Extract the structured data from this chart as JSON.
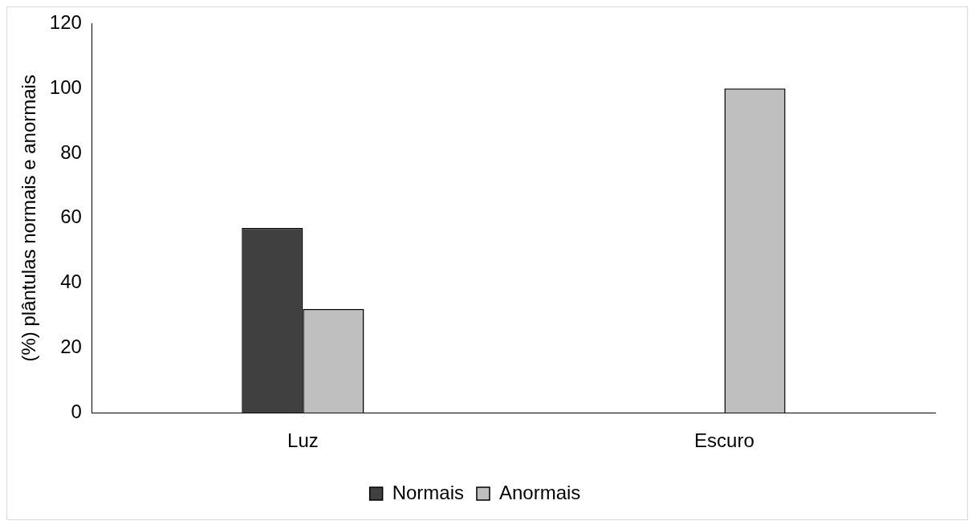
{
  "chart_data": {
    "type": "bar",
    "ylabel": "(%) plântulas normais e anormais",
    "categories": [
      "Luz",
      "Escuro"
    ],
    "series": [
      {
        "name": "Normais",
        "color": "#404040",
        "values": [
          57,
          0
        ]
      },
      {
        "name": "Anormais",
        "color": "#bfbfbf",
        "values": [
          32,
          100
        ]
      }
    ],
    "ylim": [
      0,
      120
    ],
    "yticks": [
      0,
      20,
      40,
      60,
      80,
      100,
      120
    ],
    "grid": false,
    "legend": "bottom"
  }
}
